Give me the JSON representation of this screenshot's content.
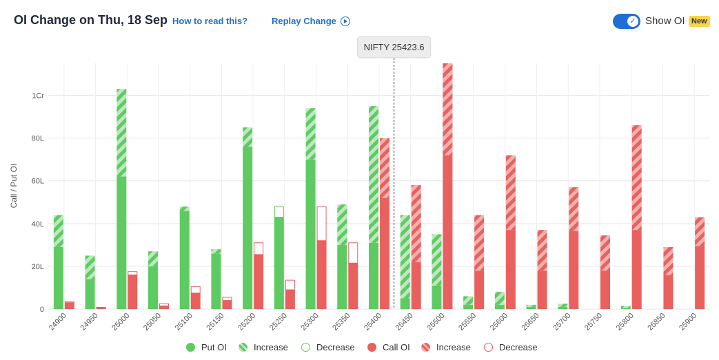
{
  "header": {
    "title": "OI Change on Thu, 18 Sep",
    "how_to_read": "How to read this?",
    "replay": "Replay Change",
    "toggle_label": "Show OI",
    "badge": "New",
    "toggle_on": true
  },
  "colors": {
    "put": "#5ecb62",
    "put_light": "#bfe8c1",
    "call": "#e8615f",
    "call_light": "#f4b1b0",
    "grid": "#e6e6e6",
    "axis_text": "#555555"
  },
  "icons": {
    "replay": "play-circle-icon",
    "toggle": "check-icon"
  },
  "chart_data": {
    "type": "bar",
    "ylabel": "Call / Put OI",
    "ylim": [
      0,
      115
    ],
    "yticks": [
      0,
      20,
      40,
      60,
      80,
      100
    ],
    "ytick_labels": [
      "0",
      "20L",
      "40L",
      "60L",
      "80L",
      "1Cr"
    ],
    "spot_label": "NIFTY 25423.6",
    "spot_value": 25423.6,
    "categories": [
      "24900",
      "24950",
      "25000",
      "25050",
      "25100",
      "25150",
      "25200",
      "25250",
      "25300",
      "25350",
      "25400",
      "25450",
      "25500",
      "25550",
      "25600",
      "25650",
      "25700",
      "25750",
      "25800",
      "25850",
      "25900"
    ],
    "series": [
      {
        "name": "Put OI",
        "values": [
          29,
          14,
          62,
          20,
          46,
          26,
          76,
          43,
          70,
          30,
          31,
          5,
          11,
          2,
          2,
          1,
          1,
          0,
          0.5,
          0,
          0
        ]
      },
      {
        "name": "Increase",
        "values": [
          15,
          11,
          41,
          7,
          2,
          2,
          9,
          0,
          24,
          19,
          64,
          39,
          24,
          4,
          6,
          1,
          1.5,
          0,
          1,
          0,
          0
        ]
      },
      {
        "name": "Decrease",
        "values": [
          0,
          0,
          0,
          0,
          0,
          0,
          0,
          5,
          0,
          0,
          0,
          0,
          0,
          0,
          0,
          0,
          0,
          0,
          0,
          0,
          0
        ]
      },
      {
        "name": "Call OI",
        "values": [
          3,
          1,
          16,
          1.5,
          7.5,
          4,
          25.5,
          9,
          32,
          21.5,
          52,
          22,
          72,
          18,
          37,
          18,
          36.5,
          18,
          37,
          16,
          29.5
        ]
      },
      {
        "name": "Increase",
        "values": [
          0,
          0,
          0,
          0,
          0,
          0,
          0,
          0,
          0,
          0,
          28,
          36,
          43,
          26,
          35,
          19,
          20.5,
          16.5,
          49,
          13,
          13.5
        ]
      },
      {
        "name": "Decrease",
        "values": [
          0.5,
          0,
          1.5,
          1,
          3,
          1.5,
          5.5,
          4.5,
          16,
          9.5,
          0,
          0,
          0,
          0,
          0,
          0,
          0,
          0,
          0,
          0,
          0
        ]
      }
    ],
    "legend": [
      {
        "label": "Put OI",
        "style": "put-solid"
      },
      {
        "label": "Increase",
        "style": "put-hatch"
      },
      {
        "label": "Decrease",
        "style": "put-outline"
      },
      {
        "label": "Call OI",
        "style": "call-solid"
      },
      {
        "label": "Increase",
        "style": "call-hatch"
      },
      {
        "label": "Decrease",
        "style": "call-outline"
      }
    ],
    "legend_position": "bottom",
    "grid": true
  }
}
